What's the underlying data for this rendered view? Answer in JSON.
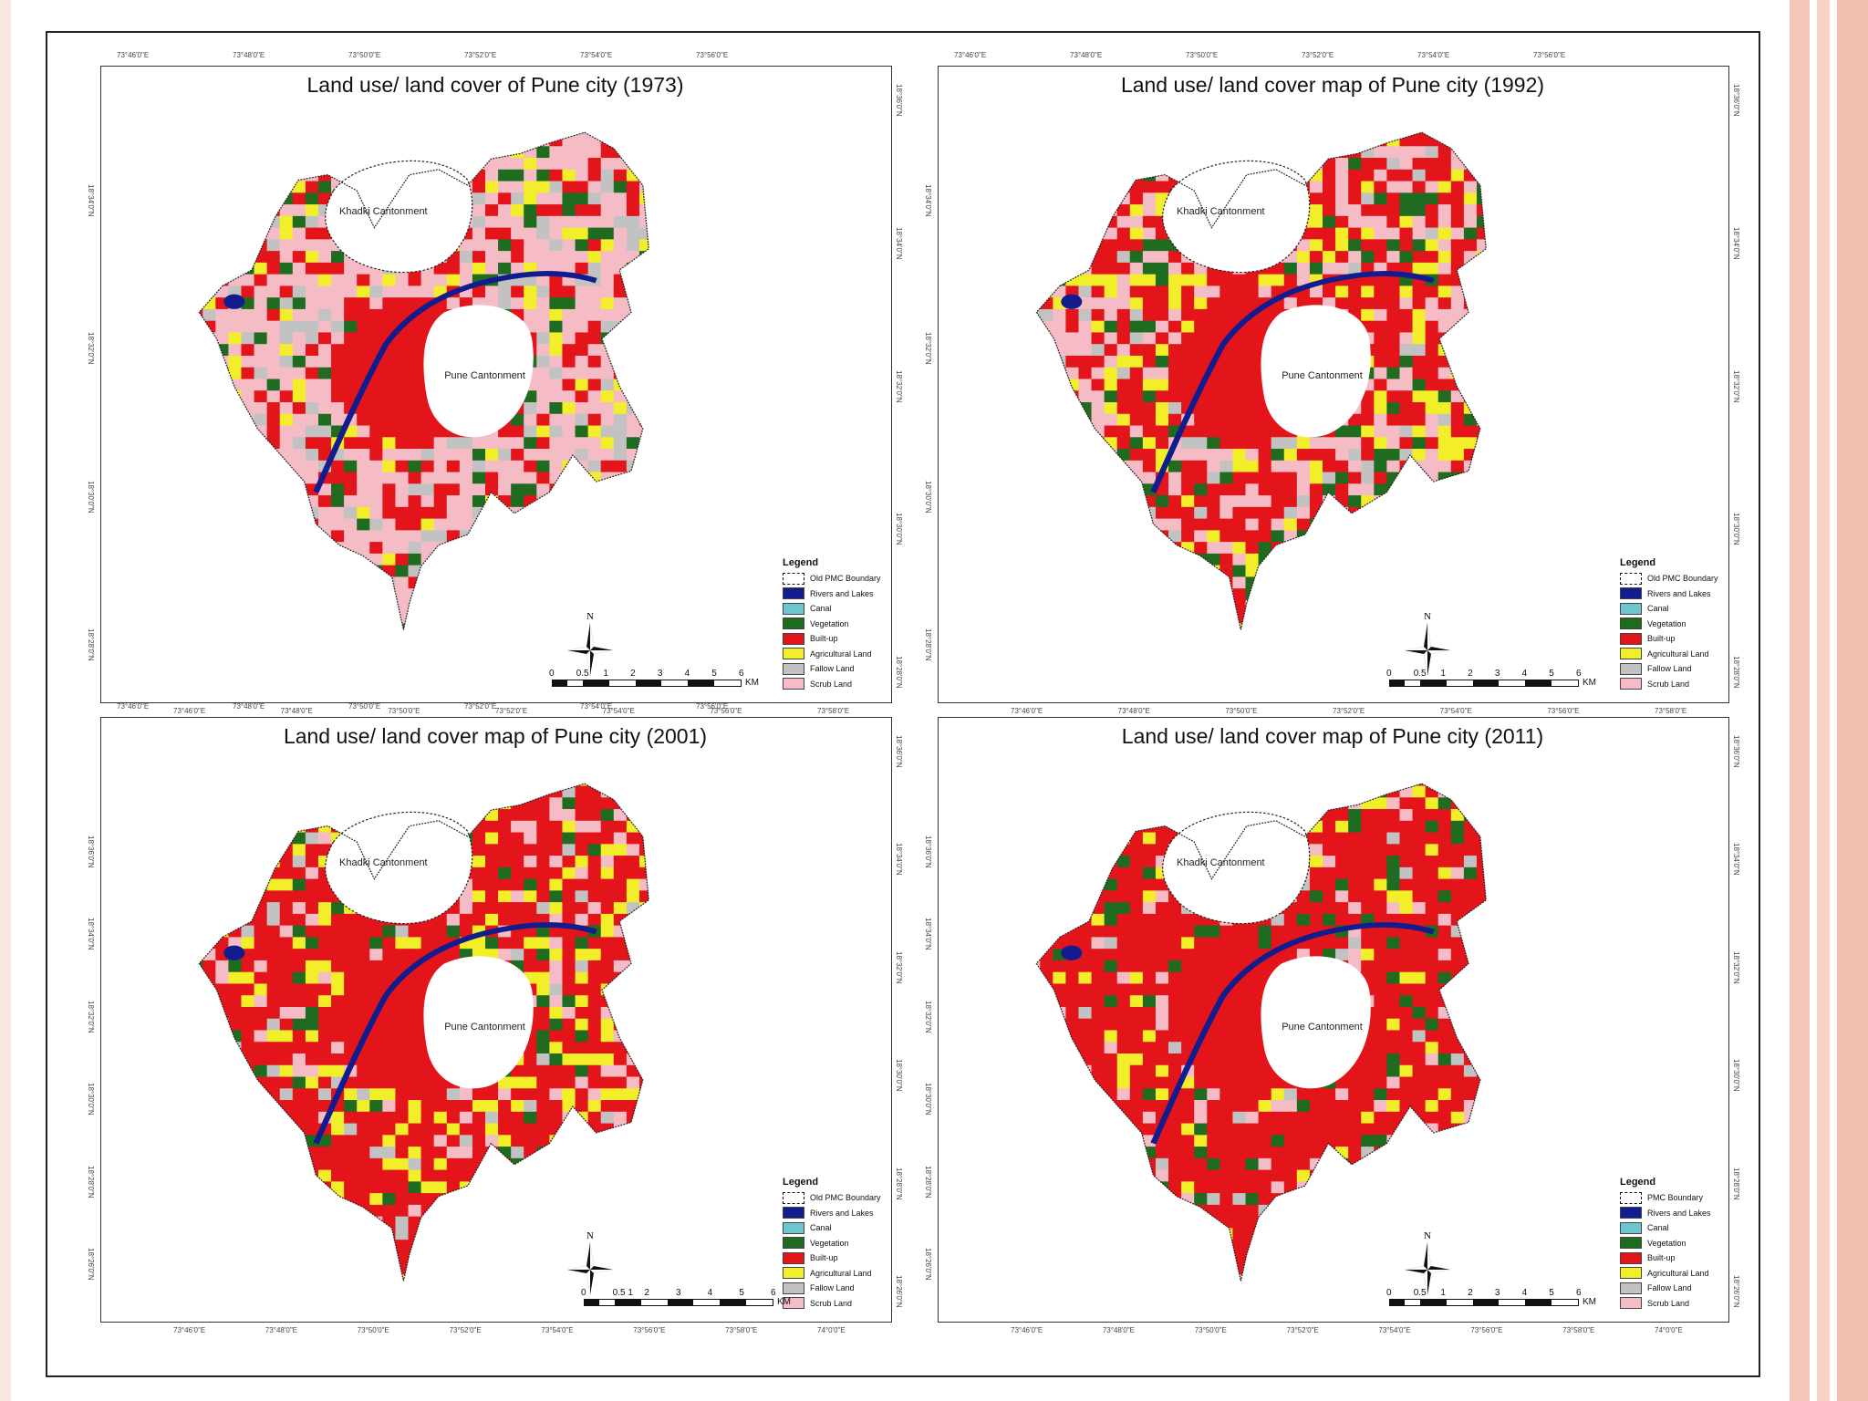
{
  "colors": {
    "builtup": "#e3141a",
    "scrub": "#f6bcc6",
    "agri": "#f3ee2a",
    "veg": "#1f6b1f",
    "fallow": "#c2c2c2",
    "river": "#111c8f",
    "canal": "#6cc6cf",
    "stripe": "#f4c6b8"
  },
  "icons": {
    "north_arrow": "north-arrow-icon",
    "boundary": "dashed-boundary-icon"
  },
  "scale": {
    "ticks_a": [
      "0",
      "0.5",
      "1",
      "2",
      "3",
      "4",
      "5",
      "6"
    ],
    "ticks_b": [
      "0",
      "0.5 1",
      "2",
      "3",
      "4",
      "5",
      "6"
    ],
    "unit": "KM"
  },
  "north_label": "N",
  "maps": [
    {
      "title": "Land use/ land cover of Pune city (1973)",
      "khadki": "Khadki Cantonment",
      "pune": "Pune Cantonment",
      "top_ticks": [
        "73°46'0\"E",
        "73°48'0\"E",
        "73°50'0\"E",
        "73°52'0\"E",
        "73°54'0\"E",
        "73°56'0\"E"
      ],
      "bottom_ticks": [
        "73°46'0\"E",
        "73°48'0\"E",
        "73°50'0\"E",
        "73°52'0\"E",
        "73°54'0\"E",
        "73°56'0\"E",
        "73°58'0\"E"
      ],
      "left_ticks": [
        "18°34'0\"N",
        "18°32'0\"N",
        "18°30'0\"N",
        "18°28'0\"N"
      ],
      "right_ticks": [
        "18°36'0\"N",
        "18°34'0\"N",
        "18°32'0\"N",
        "18°30'0\"N",
        "18°28'0\"N"
      ],
      "legend": {
        "title": "Legend",
        "items": [
          "Old PMC Boundary",
          "Rivers and Lakes",
          "Canal",
          "Vegetation",
          "Built-up",
          "Agricultural  Land",
          "Fallow Land",
          "Scrub Land"
        ]
      },
      "mix": {
        "builtup": 0.22,
        "scrub": 0.5,
        "agri": 0.08,
        "veg": 0.08,
        "fallow": 0.12
      }
    },
    {
      "title": "Land use/ land cover map of Pune city (1992)",
      "khadki": "Khadki Cantonment",
      "pune": "Pune Cantonment",
      "top_ticks": [
        "73°46'0\"E",
        "73°48'0\"E",
        "73°50'0\"E",
        "73°52'0\"E",
        "73°54'0\"E",
        "73°56'0\"E"
      ],
      "bottom_ticks": [
        "73°46'0\"E",
        "73°48'0\"E",
        "73°50'0\"E",
        "73°52'0\"E",
        "73°54'0\"E",
        "73°56'0\"E",
        "73°58'0\"E"
      ],
      "left_ticks": [
        "18°34'0\"N",
        "18°32'0\"N",
        "18°30'0\"N",
        "18°28'0\"N"
      ],
      "right_ticks": [
        "18°36'0\"N",
        "18°34'0\"N",
        "18°32'0\"N",
        "18°30'0\"N",
        "18°28'0\"N"
      ],
      "legend": {
        "title": "Legend",
        "items": [
          "Old PMC Boundary",
          "Rivers and Lakes",
          "Canal",
          "Vegetation",
          "Built-up",
          "Agricultural  Land",
          "Fallow Land",
          "Scrub Land"
        ]
      },
      "mix": {
        "builtup": 0.42,
        "scrub": 0.25,
        "agri": 0.18,
        "veg": 0.1,
        "fallow": 0.05
      }
    },
    {
      "title": "Land use/ land cover map of Pune city (2001)",
      "khadki": "Khadki Cantonment",
      "pune": "Pune Cantonment",
      "top_ticks": [
        "73°46'0\"E",
        "73°48'0\"E",
        "73°50'0\"E",
        "73°52'0\"E",
        "73°54'0\"E",
        "73°56'0\"E"
      ],
      "bottom_ticks": [
        "73°46'0\"E",
        "73°48'0\"E",
        "73°50'0\"E",
        "73°52'0\"E",
        "73°54'0\"E",
        "73°56'0\"E",
        "73°58'0\"E",
        "74°0'0\"E"
      ],
      "left_ticks": [
        "18°36'0\"N",
        "18°34'0\"N",
        "18°32'0\"N",
        "18°30'0\"N",
        "18°28'0\"N",
        "18°26'0\"N"
      ],
      "right_ticks": [
        "18°36'0\"N",
        "18°34'0\"N",
        "18°32'0\"N",
        "18°30'0\"N",
        "18°28'0\"N",
        "18°26'0\"N"
      ],
      "legend": {
        "title": "Legend",
        "items": [
          "Old PMC Boundary",
          "Rivers and Lakes",
          "Canal",
          "Vegetation",
          "Built-up",
          "Agricultural  Land",
          "Fallow Land",
          "Scrub Land"
        ]
      },
      "mix": {
        "builtup": 0.58,
        "scrub": 0.12,
        "agri": 0.17,
        "veg": 0.08,
        "fallow": 0.05
      }
    },
    {
      "title": "Land use/ land cover map of Pune city (2011)",
      "khadki": "Khadki Cantonment",
      "pune": "Pune Cantonment",
      "top_ticks": [],
      "bottom_ticks": [
        "73°46'0\"E",
        "73°48'0\"E",
        "73°50'0\"E",
        "73°52'0\"E",
        "73°54'0\"E",
        "73°56'0\"E",
        "73°58'0\"E",
        "74°0'0\"E"
      ],
      "left_ticks": [
        "18°36'0\"N",
        "18°34'0\"N",
        "18°32'0\"N",
        "18°30'0\"N",
        "18°28'0\"N",
        "18°26'0\"N"
      ],
      "right_ticks": [
        "18°36'0\"N",
        "18°34'0\"N",
        "18°32'0\"N",
        "18°30'0\"N",
        "18°28'0\"N",
        "18°26'0\"N"
      ],
      "legend": {
        "title": "Legend",
        "items": [
          "PMC Boundary",
          "Rivers and Lakes",
          "Canal",
          "Vegetation",
          "Built-up",
          "Agricultural  Land",
          "Fallow Land",
          "Scrub Land"
        ]
      },
      "mix": {
        "builtup": 0.74,
        "scrub": 0.08,
        "agri": 0.07,
        "veg": 0.08,
        "fallow": 0.03
      }
    }
  ]
}
